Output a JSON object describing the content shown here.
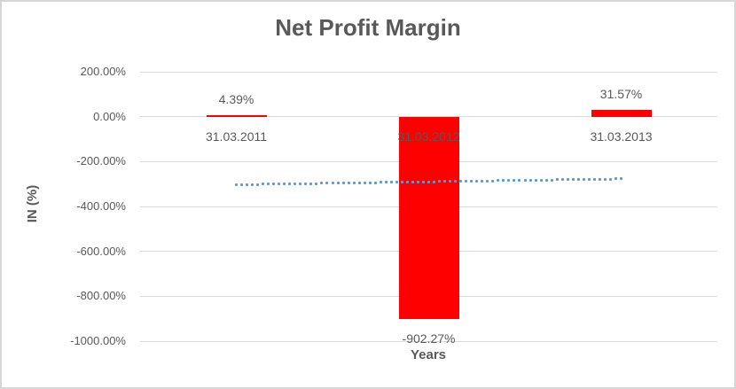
{
  "chart": {
    "title": "Net Profit Margin",
    "x_axis_title": "Years",
    "y_axis_title": "IN (%)"
  },
  "chart_data": {
    "type": "bar",
    "title": "Net Profit Margin",
    "xlabel": "Years",
    "ylabel": "IN (%)",
    "categories": [
      "31.03.2011",
      "31.03.2012",
      "31.03.2013"
    ],
    "values": [
      4.39,
      -902.27,
      31.57
    ],
    "data_labels": [
      "4.39%",
      "-902.27%",
      "31.57%"
    ],
    "ylim": [
      -1000,
      200
    ],
    "y_ticks": [
      {
        "value": 200,
        "label": "200.00%"
      },
      {
        "value": 0,
        "label": "0.00%"
      },
      {
        "value": -200,
        "label": "-200.00%"
      },
      {
        "value": -400,
        "label": "-400.00%"
      },
      {
        "value": -600,
        "label": "-600.00%"
      },
      {
        "value": -800,
        "label": "-800.00%"
      },
      {
        "value": -1000,
        "label": "-1000.00%"
      }
    ],
    "grid": true,
    "legend": "none",
    "bar_color": "#FF0000",
    "gridline_color": "#D9D9D9",
    "text_color": "#595959",
    "trendline": {
      "type": "linear",
      "style": "dotted",
      "color": "#5B9BD5",
      "start_value": -303,
      "end_value": -277
    }
  }
}
